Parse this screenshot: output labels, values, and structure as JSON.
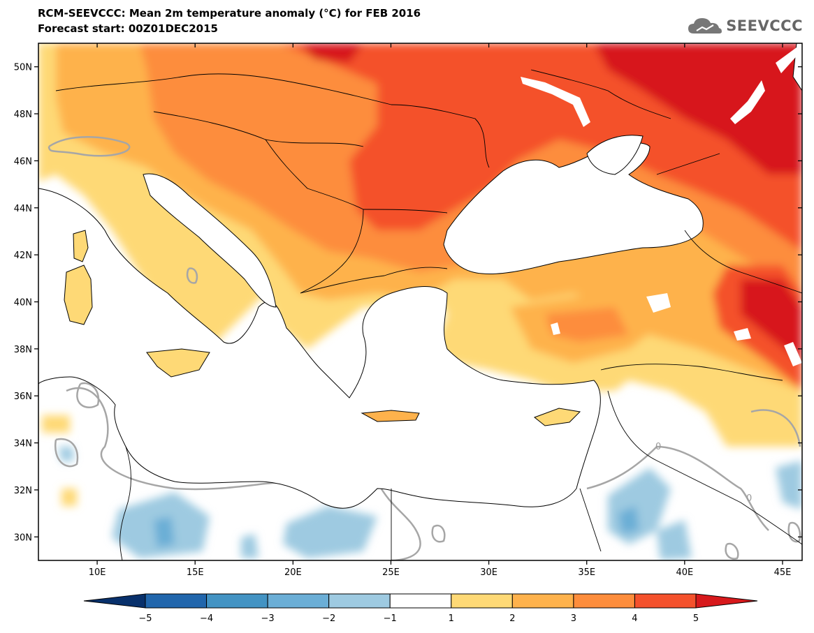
{
  "header": {
    "title": "RCM-SEEVCCC: Mean 2m temperature anomaly (°C) for FEB 2016",
    "subtitle": "Forecast start: 00Z01DEC2015",
    "logo_text": "SEEVCCC",
    "logo_icon": "cloud-logo-icon"
  },
  "map": {
    "extent_lon": [
      7,
      46
    ],
    "extent_lat": [
      29,
      51
    ],
    "lon_ticks": [
      {
        "value": 10,
        "label": "10E"
      },
      {
        "value": 15,
        "label": "15E"
      },
      {
        "value": 20,
        "label": "20E"
      },
      {
        "value": 25,
        "label": "25E"
      },
      {
        "value": 30,
        "label": "30E"
      },
      {
        "value": 35,
        "label": "35E"
      },
      {
        "value": 40,
        "label": "40E"
      },
      {
        "value": 45,
        "label": "45E"
      }
    ],
    "lat_ticks": [
      {
        "value": 50,
        "label": "50N"
      },
      {
        "value": 48,
        "label": "48N"
      },
      {
        "value": 46,
        "label": "46N"
      },
      {
        "value": 44,
        "label": "44N"
      },
      {
        "value": 42,
        "label": "42N"
      },
      {
        "value": 40,
        "label": "40N"
      },
      {
        "value": 38,
        "label": "38N"
      },
      {
        "value": 36,
        "label": "36N"
      },
      {
        "value": 34,
        "label": "34N"
      },
      {
        "value": 32,
        "label": "32N"
      },
      {
        "value": 30,
        "label": "30N"
      }
    ],
    "contour_label": "0"
  },
  "colorbar": {
    "ticks": [
      "-5",
      "-4",
      "-3",
      "-2",
      "-1",
      "1",
      "2",
      "3",
      "4",
      "5"
    ],
    "colors": [
      "#08306b",
      "#2166ac",
      "#4393c3",
      "#6baed6",
      "#9ecae1",
      "#ffffff",
      "#fed976",
      "#feb24c",
      "#fd8d3c",
      "#f4512c",
      "#d7191c"
    ]
  },
  "palette": {
    "warm1": "#fed976",
    "warm2": "#feb24c",
    "warm3": "#fd8d3c",
    "warm4": "#f4512c",
    "warm5": "#d7191c",
    "cool1": "#9ecae1",
    "cool2": "#6baed6",
    "contour": "#a6a6a6"
  }
}
